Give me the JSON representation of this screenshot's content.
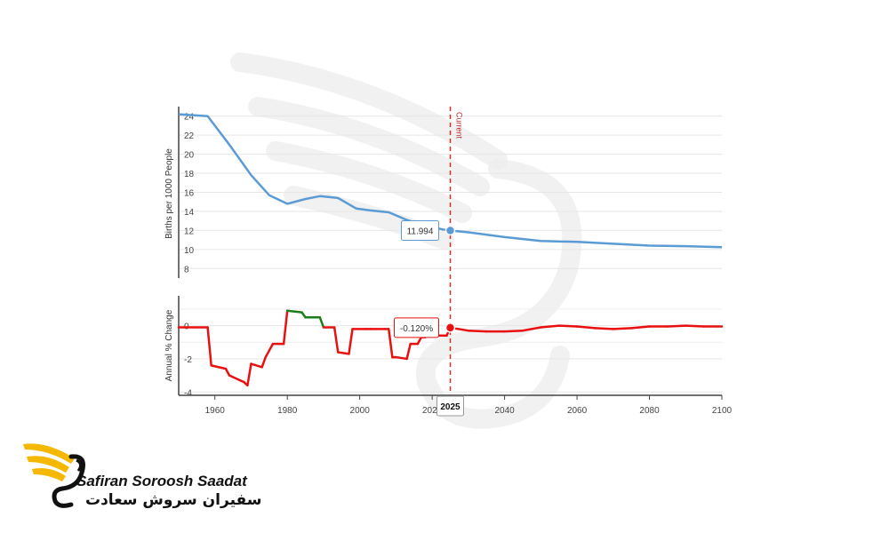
{
  "chart_data": [
    {
      "type": "line",
      "ylabel": "Births per 1000 People",
      "xlim": [
        1950,
        2100
      ],
      "ylim": [
        7,
        25
      ],
      "yticks": [
        8,
        10,
        12,
        14,
        16,
        18,
        20,
        22,
        24
      ],
      "grid": true,
      "series": [
        {
          "color": "#5b9bd5",
          "x": [
            1950,
            1958,
            1964,
            1970,
            1975,
            1980,
            1985,
            1989,
            1994,
            1999,
            2003,
            2008,
            2013,
            2018,
            2023,
            2025,
            2030,
            2040,
            2050,
            2060,
            2070,
            2080,
            2090,
            2100
          ],
          "y": [
            24.2,
            24.0,
            21.0,
            17.8,
            15.7,
            14.8,
            15.3,
            15.6,
            15.4,
            14.3,
            14.1,
            13.9,
            13.1,
            12.5,
            12.1,
            11.994,
            11.8,
            11.3,
            10.9,
            10.8,
            10.6,
            10.4,
            10.35,
            10.25
          ]
        }
      ],
      "annotations": [
        {
          "text": "Current",
          "x": 2025
        },
        {
          "text": "11.994",
          "x": 2025,
          "y": 11.994
        }
      ]
    },
    {
      "type": "line",
      "ylabel": "Annual % Change",
      "xlim": [
        1950,
        2100
      ],
      "ylim": [
        -4.2,
        1.8
      ],
      "yticks": [
        -4,
        -2,
        0
      ],
      "xticks": [
        1960,
        1980,
        2000,
        2020,
        2040,
        2060,
        2080,
        2100
      ],
      "grid": true,
      "colors": {
        "positive": "#1a7f1a",
        "negative": "#e8110f"
      },
      "series": [
        {
          "x": [
            1950,
            1958,
            1959,
            1963,
            1964,
            1967,
            1968,
            1969,
            1970,
            1973,
            1974,
            1976,
            1978,
            1979,
            1980,
            1984,
            1985,
            1989,
            1990,
            1993,
            1994,
            1997,
            1998,
            2002,
            2003,
            2007,
            2008,
            2009,
            2010,
            2013,
            2014,
            2016,
            2017,
            2018,
            2019,
            2024,
            2025,
            2030,
            2035,
            2040,
            2045,
            2050,
            2055,
            2060,
            2065,
            2070,
            2075,
            2080,
            2085,
            2090,
            2095,
            2100
          ],
          "y": [
            -0.1,
            -0.1,
            -2.4,
            -2.6,
            -3.0,
            -3.3,
            -3.4,
            -3.6,
            -2.3,
            -2.5,
            -1.9,
            -1.1,
            -1.1,
            -1.1,
            0.9,
            0.8,
            0.5,
            0.5,
            -0.1,
            -0.1,
            -1.6,
            -1.7,
            -0.2,
            -0.2,
            -0.2,
            -0.2,
            -0.2,
            -1.9,
            -1.9,
            -2.0,
            -1.1,
            -1.1,
            -0.7,
            -0.7,
            -0.6,
            -0.6,
            -0.12,
            -0.3,
            -0.35,
            -0.35,
            -0.3,
            -0.1,
            0.0,
            -0.05,
            -0.15,
            -0.2,
            -0.15,
            -0.05,
            -0.05,
            0.0,
            -0.05,
            -0.05
          ]
        }
      ],
      "annotations": [
        {
          "text": "-0.120%",
          "x": 2025,
          "y": -0.12
        },
        {
          "text": "2025",
          "x": 2025
        }
      ]
    }
  ],
  "brand": {
    "name_en": "Safiran Soroosh Saadat",
    "name_fa": "سفیران سروش سعادت"
  }
}
